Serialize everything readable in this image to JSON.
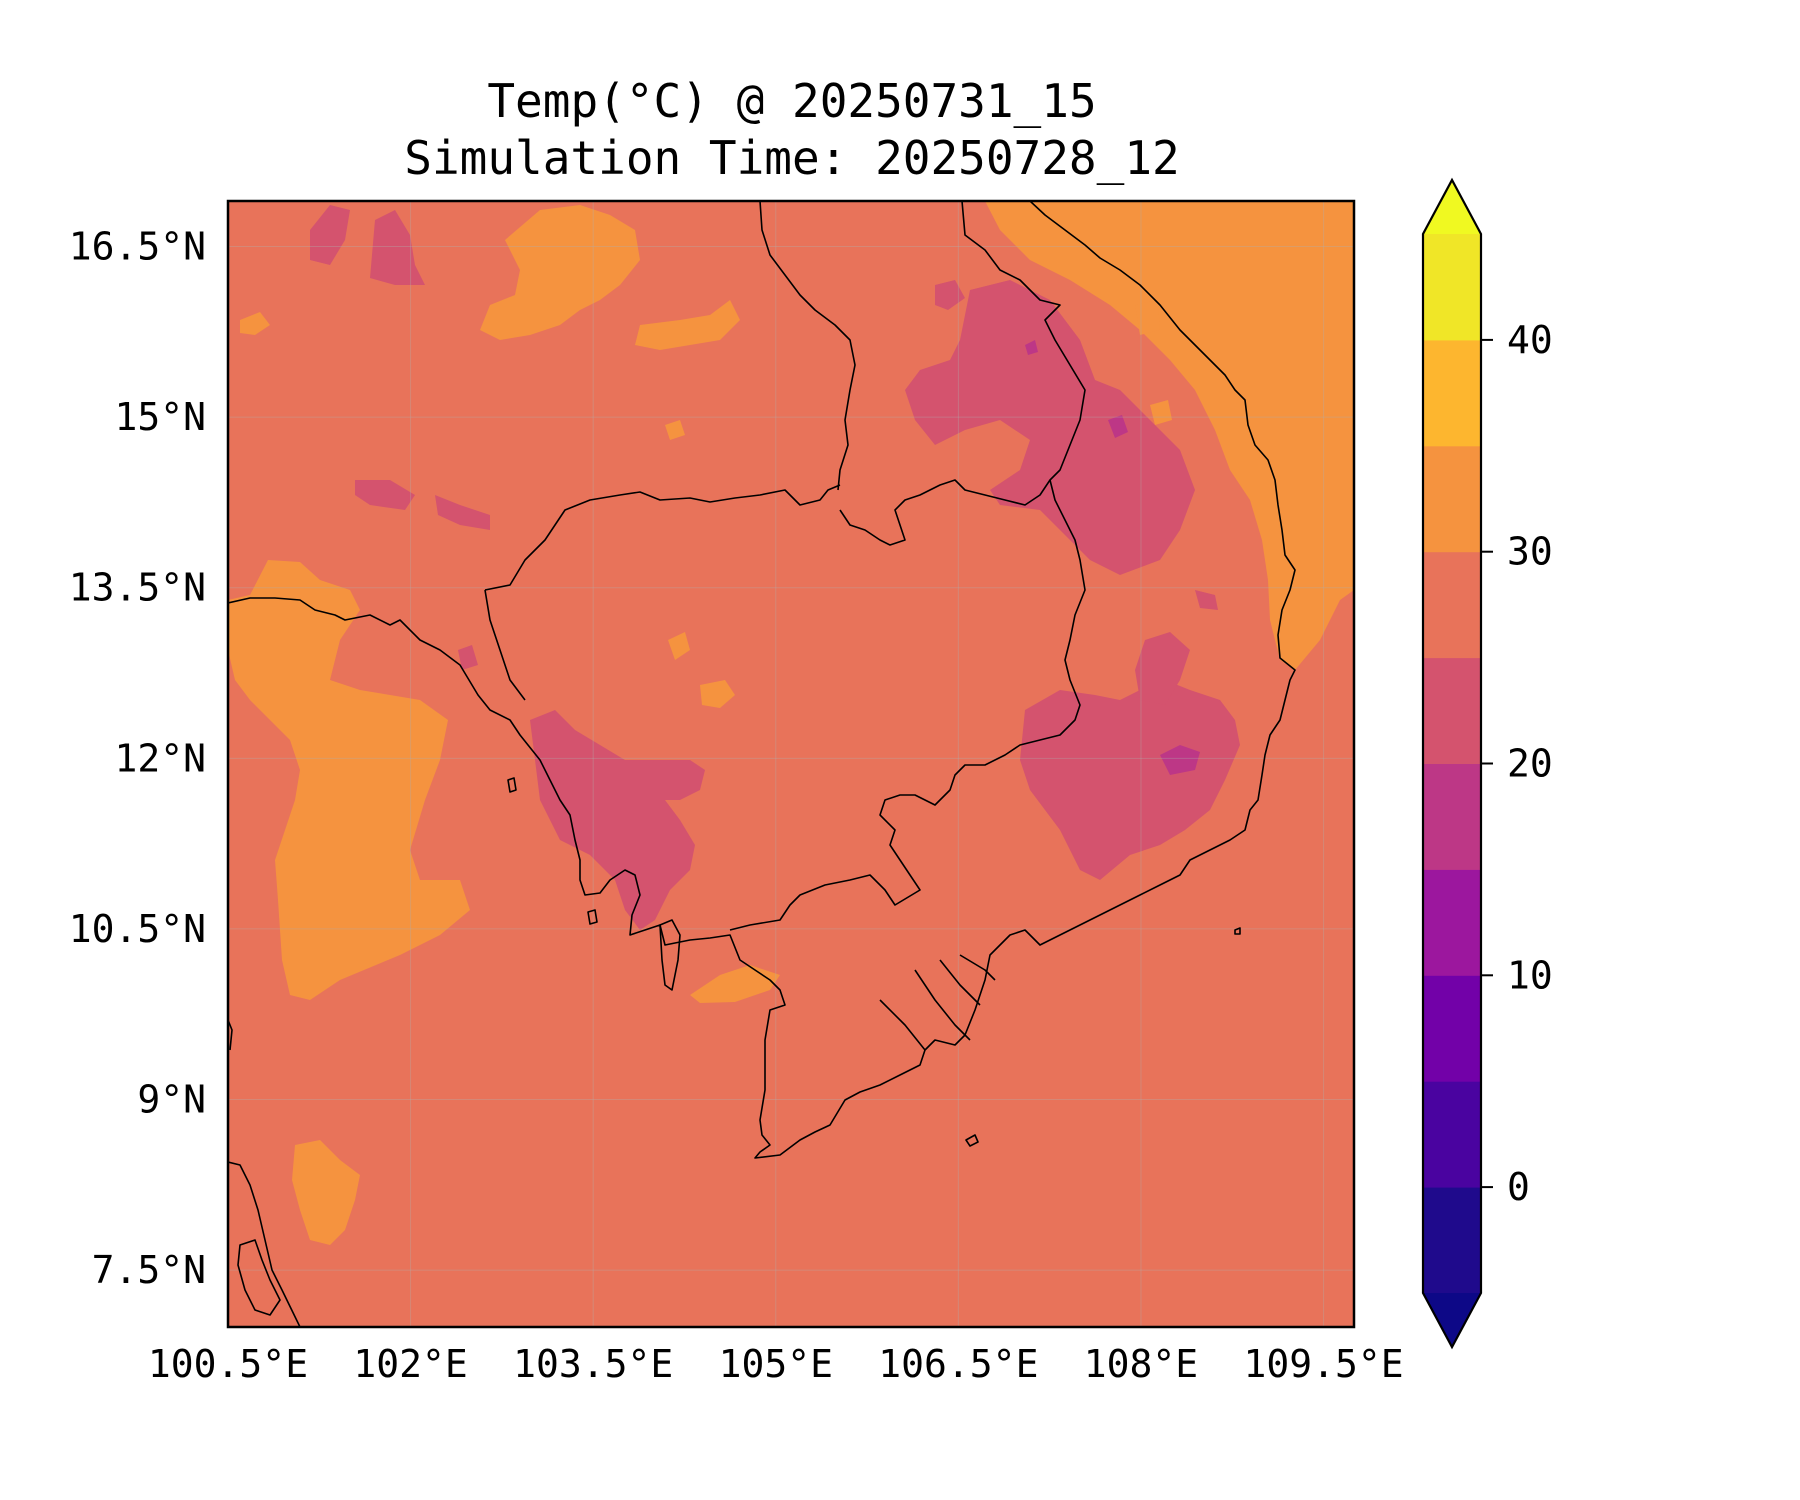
{
  "title": {
    "line1": "Temp(°C) @ 20250731_15",
    "line2": "Simulation Time: 20250728_12"
  },
  "map": {
    "lon_range": [
      100.5,
      109.75
    ],
    "lat_range": [
      7.0,
      16.9
    ],
    "x_ticks": [
      "100.5°E",
      "102°E",
      "103.5°E",
      "105°E",
      "106.5°E",
      "108°E",
      "109.5°E"
    ],
    "y_ticks": [
      "16.5°N",
      "15°N",
      "13.5°N",
      "12°N",
      "10.5°N",
      "9°N",
      "7.5°N"
    ],
    "background_level_color": "#e8735a",
    "regions": [
      {
        "name": "warm-west-coast",
        "range": "30-35",
        "color": "#f5933f"
      },
      {
        "name": "warm-north-patches",
        "range": "30-35",
        "color": "#f5933f"
      },
      {
        "name": "warm-south-china-sea",
        "range": "30-35",
        "color": "#f5933f"
      },
      {
        "name": "cool-central-highlands",
        "range": "20-25",
        "color": "#d4536e"
      },
      {
        "name": "cool-cardamom",
        "range": "20-25",
        "color": "#d4536e"
      },
      {
        "name": "cool-south-highlands",
        "range": "20-25",
        "color": "#d4536e"
      }
    ]
  },
  "colorbar": {
    "ticks": [
      "0",
      "10",
      "20",
      "30",
      "40"
    ],
    "tick_values": [
      0,
      10,
      20,
      30,
      40
    ],
    "levels": [
      -5,
      0,
      5,
      10,
      15,
      20,
      25,
      30,
      35,
      40,
      45
    ],
    "colors": [
      "#1f0a8c",
      "#4a03a0",
      "#7201a8",
      "#9c179e",
      "#bd3786",
      "#d4536e",
      "#e8735a",
      "#f5933f",
      "#fdb62f",
      "#f0e627"
    ],
    "under_color": "#0d0887",
    "over_color": "#f0f921"
  }
}
